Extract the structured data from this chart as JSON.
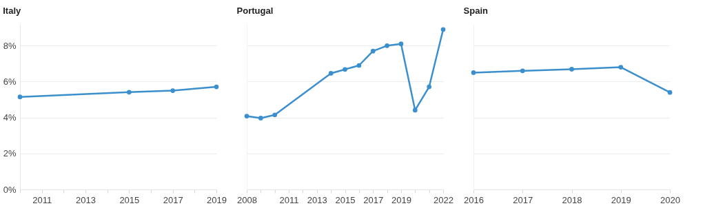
{
  "chart_data": [
    {
      "type": "line",
      "title": "Italy",
      "x": [
        2010,
        2015,
        2017,
        2019
      ],
      "series": [
        {
          "color": "#3a8fcc",
          "values": [
            5.15,
            5.41,
            5.5,
            5.71
          ]
        }
      ],
      "xlim": [
        2010,
        2019
      ],
      "xticks": [
        {
          "value": 2010,
          "label": null
        },
        2011,
        {
          "value": 2012,
          "label": null
        },
        2013,
        {
          "value": 2014,
          "label": null
        },
        2015,
        {
          "value": 2016,
          "label": null
        },
        2017,
        {
          "value": 2018,
          "label": null
        },
        2019
      ],
      "ylim": [
        0,
        9.2
      ],
      "yticks": [
        {
          "value": 0,
          "label": "0%"
        },
        {
          "value": 2,
          "label": "2%"
        },
        {
          "value": 4,
          "label": "4%"
        },
        {
          "value": 6,
          "label": "6%"
        },
        {
          "value": 8,
          "label": "8%"
        }
      ],
      "grid": "y",
      "marker": "circle",
      "line_style": "solid"
    },
    {
      "type": "line",
      "title": "Portugal",
      "x": [
        2008,
        2009,
        2010,
        2014,
        2015,
        2016,
        2017,
        2018,
        2019,
        2020,
        2021,
        2022
      ],
      "series": [
        {
          "color": "#3a8fcc",
          "values": [
            4.08,
            3.97,
            4.15,
            6.46,
            6.68,
            6.9,
            7.7,
            8.0,
            8.1,
            4.41,
            5.71,
            8.9
          ]
        }
      ],
      "xlim": [
        2008,
        2022
      ],
      "xticks": [
        2008,
        {
          "value": 2009,
          "label": null
        },
        {
          "value": 2010,
          "label": null
        },
        2011,
        {
          "value": 2012,
          "label": null
        },
        2013,
        {
          "value": 2014,
          "label": null
        },
        2015,
        {
          "value": 2016,
          "label": null
        },
        2017,
        {
          "value": 2018,
          "label": null
        },
        2019,
        {
          "value": 2020,
          "label": null
        },
        {
          "value": 2021,
          "label": null
        },
        2022
      ],
      "ylim": [
        0,
        9.2
      ],
      "yticks": [
        0,
        2,
        4,
        6,
        8
      ],
      "tick_labels": "x",
      "grid": "y",
      "marker": "circle",
      "line_style": "solid"
    },
    {
      "type": "line",
      "title": "Spain",
      "x": [
        2016,
        2017,
        2018,
        2019,
        2020
      ],
      "series": [
        {
          "color": "#3a8fcc",
          "values": [
            6.5,
            6.6,
            6.69,
            6.8,
            5.4
          ]
        }
      ],
      "xlim": [
        2016,
        2020
      ],
      "xticks": [
        2016,
        2017,
        2018,
        2019,
        2020
      ],
      "ylim": [
        0,
        9.2
      ],
      "yticks": [
        0,
        2,
        4,
        6,
        8
      ],
      "tick_labels": "x",
      "grid": "y",
      "marker": "circle",
      "line_style": "solid"
    }
  ]
}
